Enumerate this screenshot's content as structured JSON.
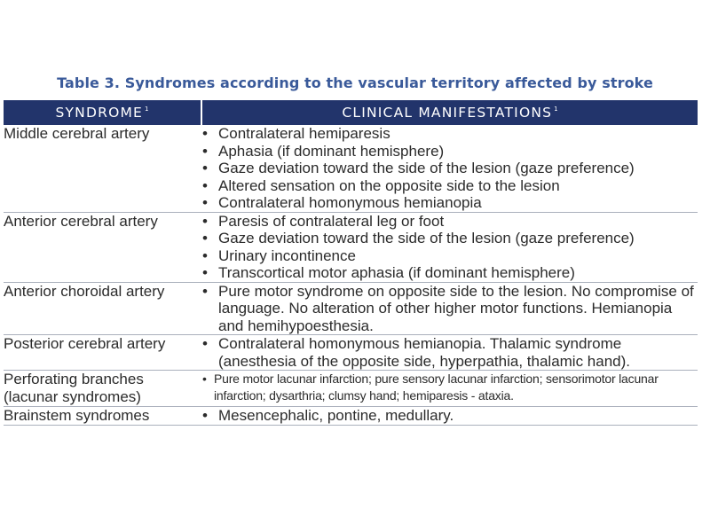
{
  "caption": "Table 3. Syndromes according to the vascular territory affected by stroke",
  "table": {
    "headers": [
      {
        "label": "SYNDROME",
        "sup": "1"
      },
      {
        "label": "CLINICAL MANIFESTATIONS",
        "sup": "1"
      }
    ],
    "bullet": "•",
    "rows": [
      {
        "syndrome": "Middle cerebral artery",
        "items": [
          "Contralateral hemiparesis",
          "Aphasia (if dominant hemisphere)",
          "Gaze deviation toward the side of the lesion (gaze preference)",
          "Altered sensation on the opposite side to the lesion",
          "Contralateral homonymous hemianopia"
        ]
      },
      {
        "syndrome": "Anterior cerebral artery",
        "items": [
          "Paresis of contralateral leg or foot",
          "Gaze deviation toward the side of the lesion (gaze preference)",
          "Urinary incontinence",
          "Transcortical motor aphasia (if dominant hemisphere)"
        ]
      },
      {
        "syndrome": "Anterior choroidal artery",
        "items": [
          "Pure motor syndrome on opposite side to the lesion. No compromise of language. No alteration of other higher motor functions. Hemianopia and hemihypoesthesia."
        ]
      },
      {
        "syndrome": "Posterior cerebral artery",
        "items": [
          "Contralateral homonymous hemianopia. Thalamic syndrome (anesthesia of the opposite side, hyperpathia, thalamic hand)."
        ]
      },
      {
        "syndrome": "Perforating branches (lacunar syndromes)",
        "items": [
          "Pure motor lacunar infarction; pure sensory lacunar infarction; sensorimotor lacunar infarction; dysarthria; clumsy hand; hemiparesis - ataxia."
        ]
      },
      {
        "syndrome": "Brainstem syndromes",
        "items": [
          "Mesencephalic, pontine, medullary."
        ]
      }
    ]
  }
}
